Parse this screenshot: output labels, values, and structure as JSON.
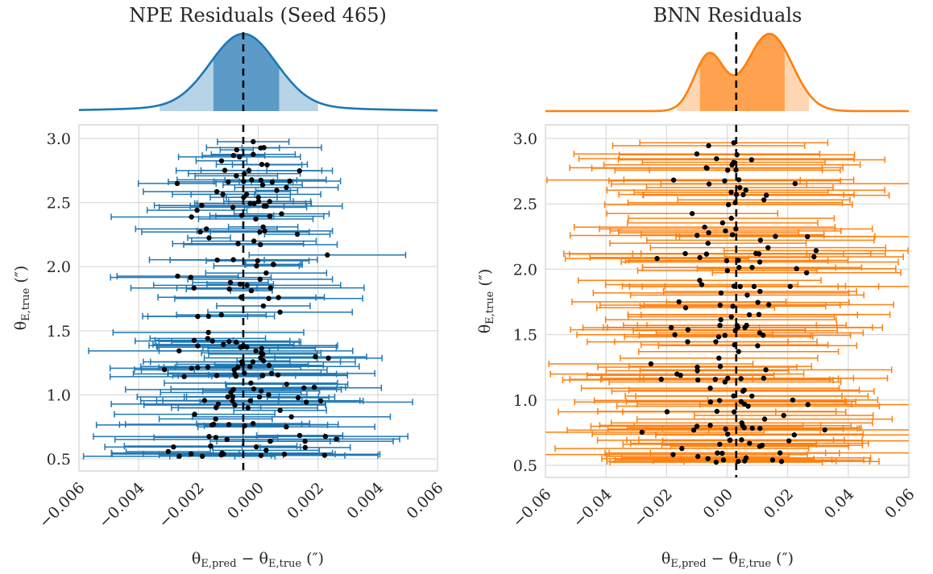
{
  "chart_data": [
    {
      "type": "scatter",
      "title": "NPE Residuals (Seed 465)",
      "xlabel": "θE,pred − θE,true (″)",
      "ylabel": "θE,true (″)",
      "xlim": [
        -0.006,
        0.006
      ],
      "ylim": [
        0.42,
        3.1
      ],
      "xticks": [
        "−0.006",
        "−0.004",
        "−0.002",
        "0.000",
        "0.002",
        "0.004",
        "0.006"
      ],
      "yticks": [
        "0.5",
        "1.0",
        "1.5",
        "2.0",
        "2.5",
        "3.0"
      ],
      "grid": true,
      "color": "#1f77b4",
      "median_line_x": -0.0005,
      "kde": {
        "x_center": -0.0005,
        "bandwidth": 0.0011,
        "inner_interval": [
          -0.0015,
          0.0007
        ],
        "outer_interval": [
          -0.0033,
          0.002
        ],
        "color": "#1f77b4"
      },
      "points": {
        "n": 175,
        "seed": 465,
        "center": -0.0005,
        "spread": 0.0011,
        "err_min": 0.0006,
        "err_max": 0.0028
      }
    },
    {
      "type": "scatter",
      "title": "BNN Residuals",
      "xlabel": "θE,pred − θE,true (″)",
      "ylabel": "θE,true (″)",
      "xlim": [
        -0.06,
        0.06
      ],
      "ylim": [
        0.42,
        3.1
      ],
      "xticks": [
        "−0.06",
        "−0.04",
        "−0.02",
        "0.00",
        "0.02",
        "0.04",
        "0.06"
      ],
      "yticks": [
        "0.5",
        "1.0",
        "1.5",
        "2.0",
        "2.5",
        "3.0"
      ],
      "grid": true,
      "color": "#ff7f0e",
      "median_line_x": 0.003,
      "kde": {
        "bimodal": true,
        "modes": [
          -0.006,
          0.014
        ],
        "weights": [
          0.42,
          0.58
        ],
        "bandwidth": 0.0065,
        "inner_interval": [
          -0.009,
          0.019
        ],
        "outer_interval": [
          -0.0165,
          0.027
        ],
        "color": "#ff7f0e"
      },
      "points": {
        "n": 160,
        "seed": 777,
        "center": 0.003,
        "spread": 0.011,
        "err_min": 0.028,
        "err_max": 0.046
      }
    }
  ]
}
